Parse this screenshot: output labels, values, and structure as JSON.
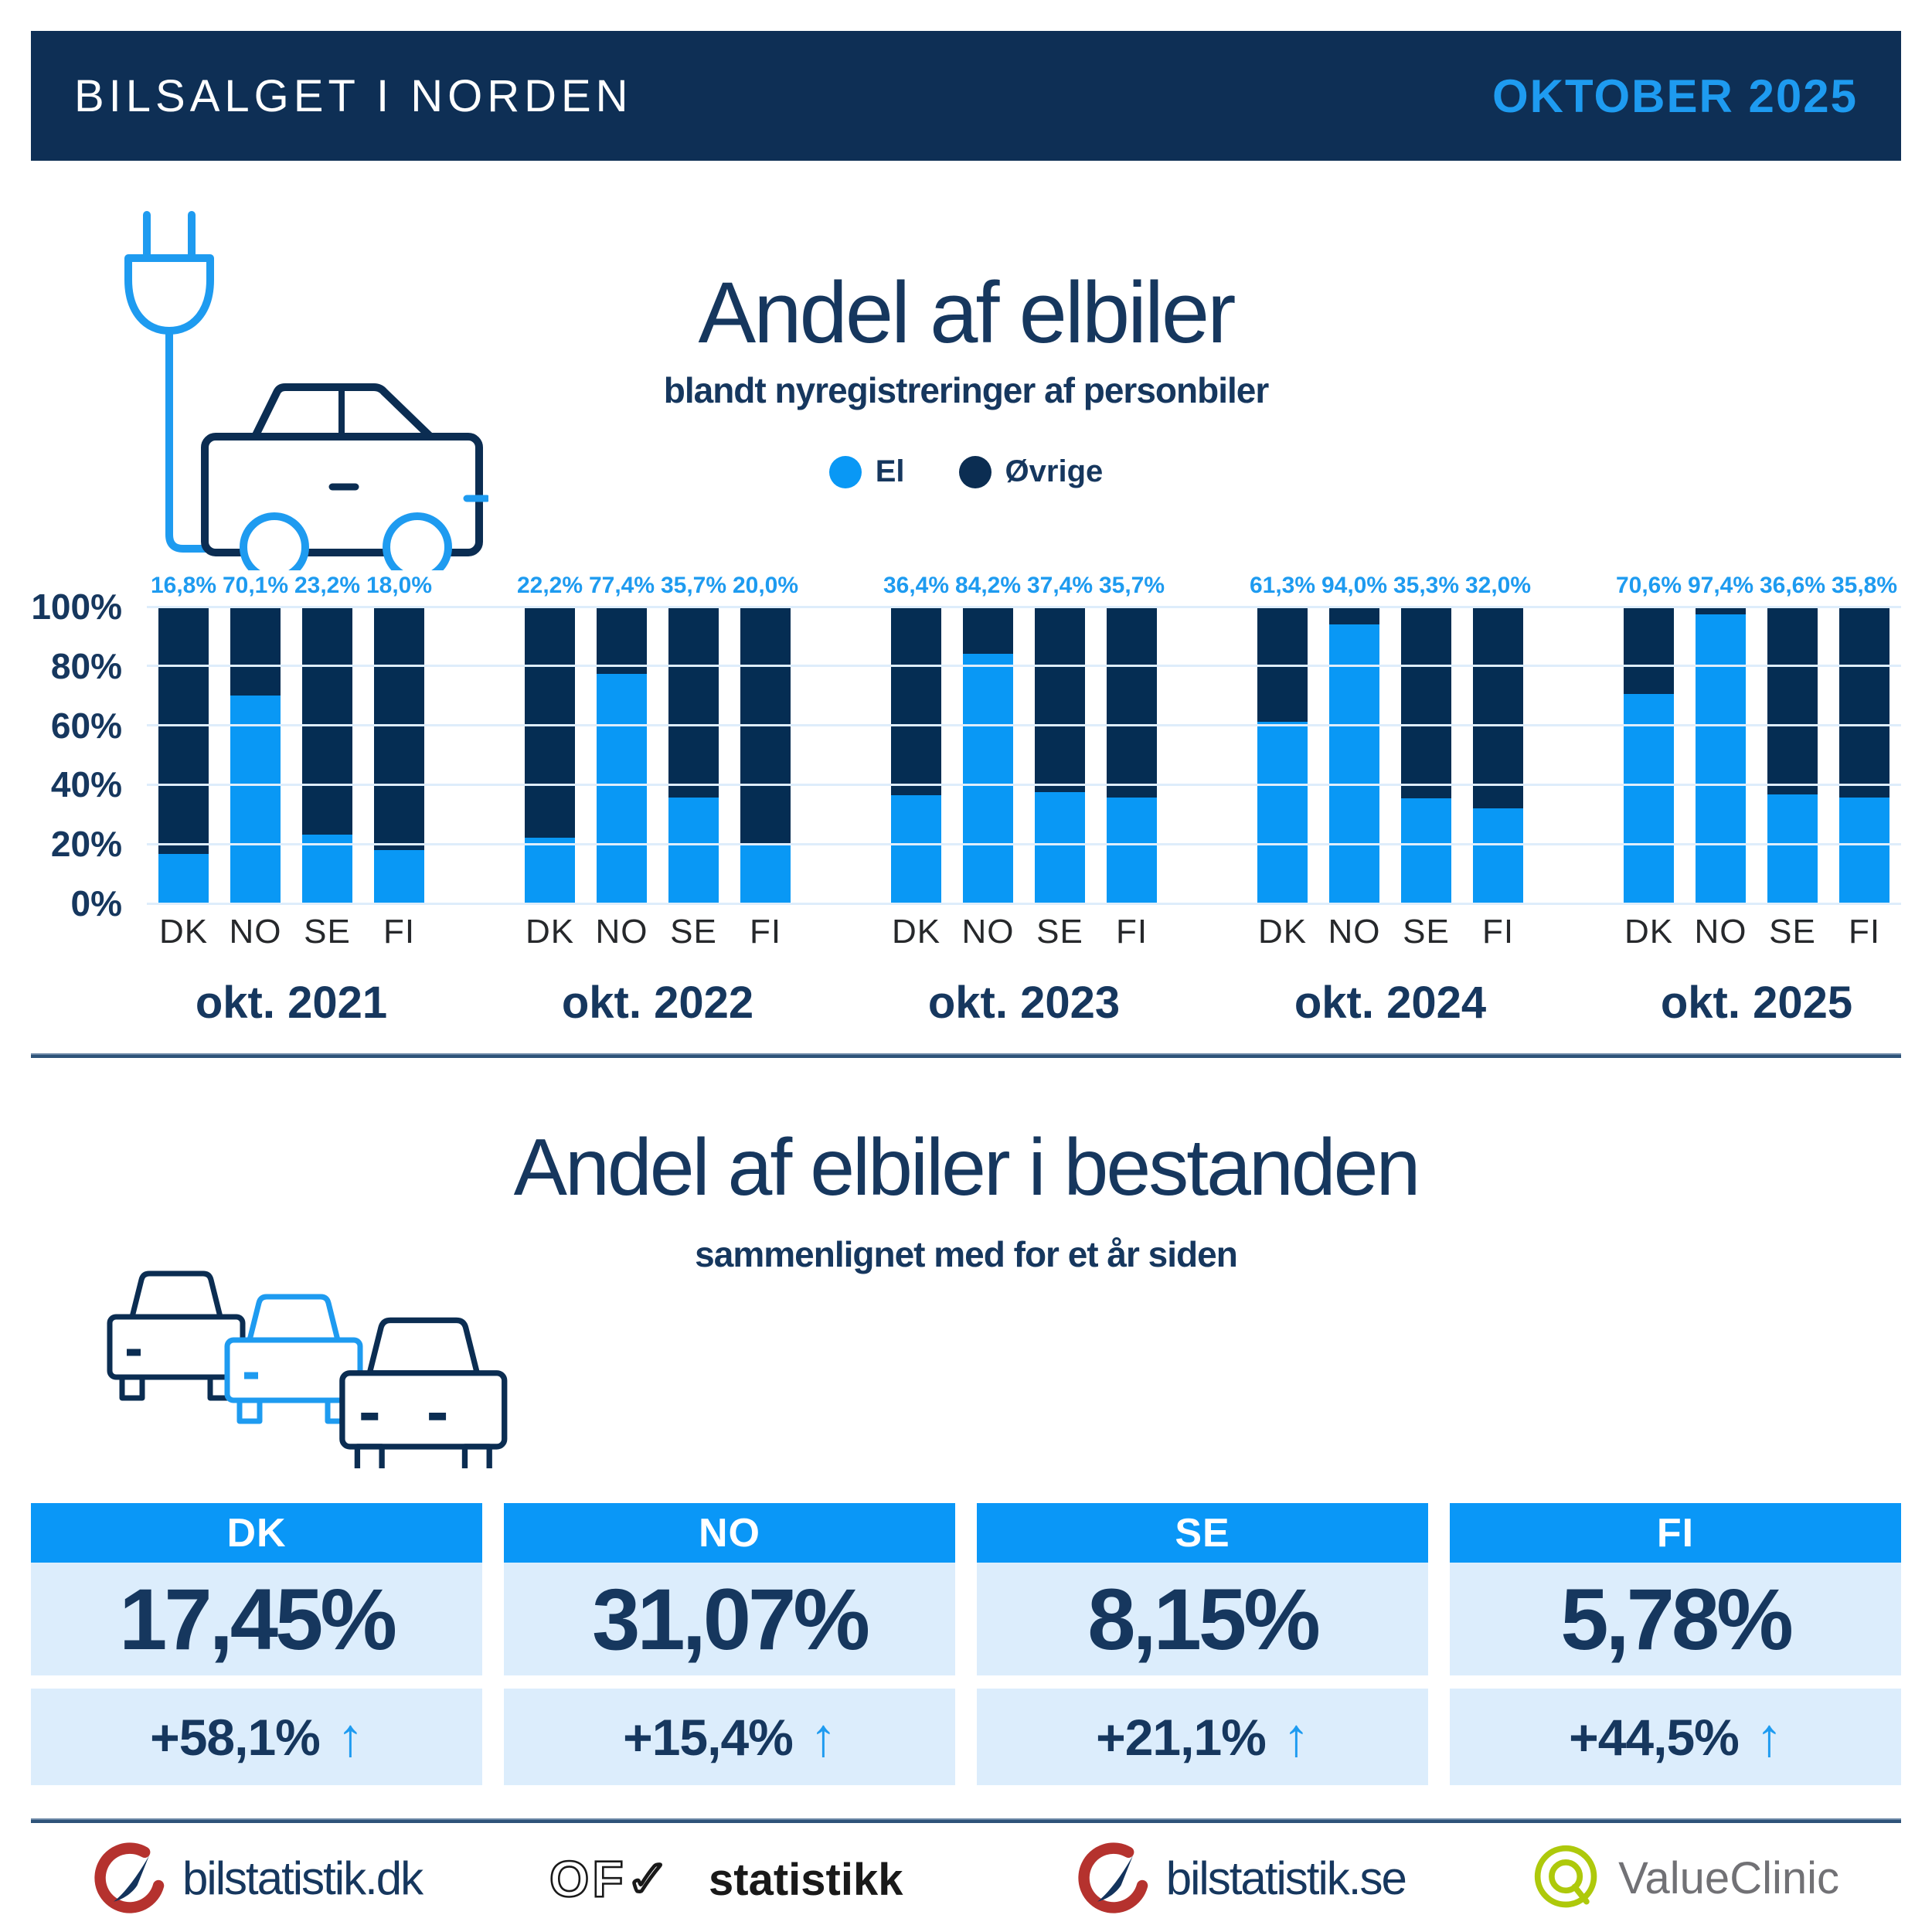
{
  "header": {
    "title": "BILSALGET I NORDEN",
    "period": "OKTOBER 2025"
  },
  "colors": {
    "navy_bar": "#052D53",
    "navy_header": "#0E2F55",
    "navy_text": "#16375E",
    "accent_blue": "#0998F5",
    "label_blue": "#1E9BF0",
    "card_header_blue": "#0A97F7",
    "card_bg": "#DCEDFC",
    "gridline": "#DEEDFB"
  },
  "chart_section": {
    "title": "Andel af elbiler",
    "subtitle": "blandt nyregistreringer af personbiler"
  },
  "chart_data": {
    "type": "bar",
    "stacked": true,
    "title": "Andel af elbiler",
    "subtitle": "blandt nyregistreringer af personbiler",
    "grid": true,
    "legend_position": "top",
    "ylim": [
      0,
      100
    ],
    "y_ticks": [
      "100%",
      "80%",
      "60%",
      "40%",
      "20%",
      "0%"
    ],
    "sub_categories": [
      "DK",
      "NO",
      "SE",
      "FI"
    ],
    "series": [
      {
        "name": "El",
        "color": "#0998F5"
      },
      {
        "name": "Øvrige",
        "color": "#052D53"
      }
    ],
    "groups": [
      {
        "label": "okt. 2021",
        "el_values": [
          16.8,
          70.1,
          23.2,
          18.0
        ],
        "el_display": [
          "16,8%",
          "70,1%",
          "23,2%",
          "18,0%"
        ],
        "ovrige_values": [
          83.2,
          29.9,
          76.8,
          82.0
        ]
      },
      {
        "label": "okt. 2022",
        "el_values": [
          22.2,
          77.4,
          35.7,
          20.0
        ],
        "el_display": [
          "22,2%",
          "77,4%",
          "35,7%",
          "20,0%"
        ],
        "ovrige_values": [
          77.8,
          22.6,
          64.3,
          80.0
        ]
      },
      {
        "label": "okt. 2023",
        "el_values": [
          36.4,
          84.2,
          37.4,
          35.7
        ],
        "el_display": [
          "36,4%",
          "84,2%",
          "37,4%",
          "35,7%"
        ],
        "ovrige_values": [
          63.6,
          15.8,
          62.6,
          64.3
        ]
      },
      {
        "label": "okt. 2024",
        "el_values": [
          61.3,
          94.0,
          35.3,
          32.0
        ],
        "el_display": [
          "61,3%",
          "94,0%",
          "35,3%",
          "32,0%"
        ],
        "ovrige_values": [
          38.7,
          6.0,
          64.7,
          68.0
        ]
      },
      {
        "label": "okt. 2025",
        "el_values": [
          70.6,
          97.4,
          36.6,
          35.8
        ],
        "el_display": [
          "70,6%",
          "97,4%",
          "36,6%",
          "35,8%"
        ],
        "ovrige_values": [
          29.4,
          2.6,
          63.4,
          64.2
        ]
      }
    ]
  },
  "stock_section": {
    "title": "Andel af elbiler i bestanden",
    "subtitle": "sammenlignet med for et år siden",
    "cards": [
      {
        "country": "DK",
        "share": "17,45%",
        "change": "+58,1%",
        "direction": "up",
        "arrow": "↑"
      },
      {
        "country": "NO",
        "share": "31,07%",
        "change": "+15,4%",
        "direction": "up",
        "arrow": "↑"
      },
      {
        "country": "SE",
        "share": "8,15%",
        "change": "+21,1%",
        "direction": "up",
        "arrow": "↑"
      },
      {
        "country": "FI",
        "share": "5,78%",
        "change": "+44,5%",
        "direction": "up",
        "arrow": "↑"
      }
    ]
  },
  "footer": {
    "logos": [
      {
        "id": "bilstatistik-dk",
        "text": "bilstatistik.dk"
      },
      {
        "id": "ofv-statistikk",
        "mark": "OF✓",
        "text": "statistikk"
      },
      {
        "id": "bilstatistik-se",
        "text": "bilstatistik.se"
      },
      {
        "id": "valueclinic",
        "text": "ValueClinic"
      }
    ]
  }
}
